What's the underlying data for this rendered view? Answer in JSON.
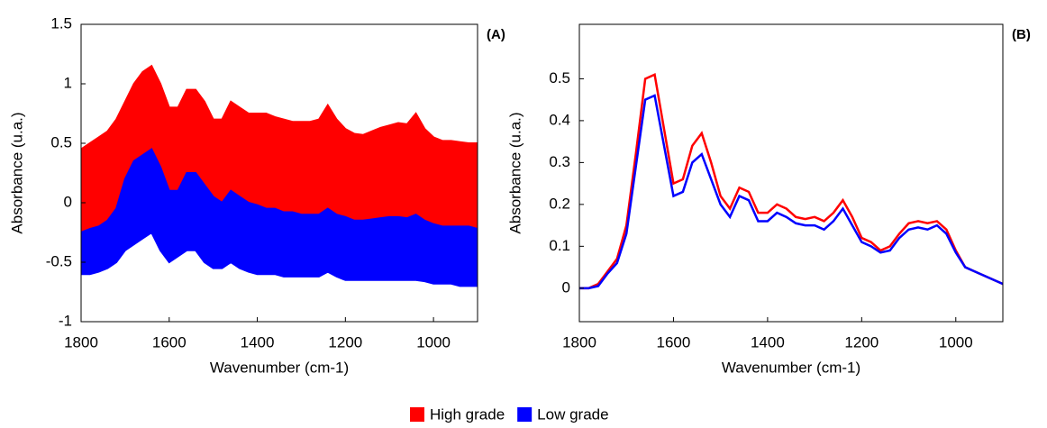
{
  "chart_data": [
    {
      "type": "band",
      "annotation": "(A)",
      "xlabel": "Wavenumber (cm-1)",
      "ylabel": "Absorbance (u.a.)",
      "x": [
        1800,
        1780,
        1760,
        1740,
        1720,
        1700,
        1680,
        1660,
        1640,
        1620,
        1600,
        1580,
        1560,
        1540,
        1520,
        1500,
        1480,
        1460,
        1440,
        1420,
        1400,
        1380,
        1360,
        1340,
        1320,
        1300,
        1280,
        1260,
        1240,
        1220,
        1200,
        1180,
        1160,
        1140,
        1120,
        1100,
        1080,
        1060,
        1040,
        1020,
        1000,
        980,
        960,
        940,
        920,
        900
      ],
      "xlim": [
        1800,
        900
      ],
      "xticks": [
        1800,
        1600,
        1400,
        1200,
        1000
      ],
      "ylim": [
        -1,
        1.5
      ],
      "yticks": [
        -1,
        -0.5,
        0,
        0.5,
        1,
        1.5
      ],
      "series": [
        {
          "color": "#ff0000",
          "values": [
            0.45,
            0.5,
            0.55,
            0.6,
            0.7,
            0.85,
            1.0,
            1.1,
            1.15,
            1.0,
            0.8,
            0.8,
            0.95,
            0.95,
            0.85,
            0.7,
            0.7,
            0.85,
            0.8,
            0.75,
            0.75,
            0.75,
            0.72,
            0.7,
            0.68,
            0.68,
            0.68,
            0.7,
            0.82,
            0.7,
            0.62,
            0.58,
            0.57,
            0.6,
            0.63,
            0.65,
            0.67,
            0.66,
            0.75,
            0.62,
            0.55,
            0.52,
            0.52,
            0.51,
            0.5,
            0.5
          ],
          "lower": [
            -0.25,
            -0.22,
            -0.2,
            -0.15,
            -0.05,
            0.2,
            0.35,
            0.4,
            0.45,
            0.3,
            0.1,
            0.1,
            0.25,
            0.25,
            0.15,
            0.05,
            0.0,
            0.1,
            0.05,
            0.0,
            -0.02,
            -0.05,
            -0.05,
            -0.08,
            -0.08,
            -0.1,
            -0.1,
            -0.1,
            -0.05,
            -0.1,
            -0.12,
            -0.15,
            -0.15,
            -0.14,
            -0.13,
            -0.12,
            -0.12,
            -0.13,
            -0.1,
            -0.15,
            -0.18,
            -0.2,
            -0.2,
            -0.2,
            -0.2,
            -0.22
          ]
        },
        {
          "color": "#0000ff",
          "values": [
            -0.25,
            -0.22,
            -0.2,
            -0.15,
            -0.05,
            0.2,
            0.35,
            0.4,
            0.45,
            0.3,
            0.1,
            0.1,
            0.25,
            0.25,
            0.15,
            0.05,
            0.0,
            0.1,
            0.05,
            0.0,
            -0.02,
            -0.05,
            -0.05,
            -0.08,
            -0.08,
            -0.1,
            -0.1,
            -0.1,
            -0.05,
            -0.1,
            -0.12,
            -0.15,
            -0.15,
            -0.14,
            -0.13,
            -0.12,
            -0.12,
            -0.13,
            -0.1,
            -0.15,
            -0.18,
            -0.2,
            -0.2,
            -0.2,
            -0.2,
            -0.22
          ],
          "lower": [
            -0.6,
            -0.6,
            -0.58,
            -0.55,
            -0.5,
            -0.4,
            -0.35,
            -0.3,
            -0.25,
            -0.4,
            -0.5,
            -0.45,
            -0.4,
            -0.4,
            -0.5,
            -0.55,
            -0.55,
            -0.5,
            -0.55,
            -0.58,
            -0.6,
            -0.6,
            -0.6,
            -0.62,
            -0.62,
            -0.62,
            -0.62,
            -0.62,
            -0.58,
            -0.62,
            -0.65,
            -0.65,
            -0.65,
            -0.65,
            -0.65,
            -0.65,
            -0.65,
            -0.65,
            -0.65,
            -0.66,
            -0.68,
            -0.68,
            -0.68,
            -0.7,
            -0.7,
            -0.7
          ]
        }
      ]
    },
    {
      "type": "line",
      "annotation": "(B)",
      "xlabel": "Wavenumber (cm-1)",
      "ylabel": "Absorbance (u.a.)",
      "x": [
        1800,
        1780,
        1760,
        1740,
        1720,
        1700,
        1680,
        1660,
        1640,
        1620,
        1600,
        1580,
        1560,
        1540,
        1520,
        1500,
        1480,
        1460,
        1440,
        1420,
        1400,
        1380,
        1360,
        1340,
        1320,
        1300,
        1280,
        1260,
        1240,
        1220,
        1200,
        1180,
        1160,
        1140,
        1120,
        1100,
        1080,
        1060,
        1040,
        1020,
        1000,
        980,
        960,
        940,
        920,
        900
      ],
      "xlim": [
        1800,
        900
      ],
      "xticks": [
        1800,
        1600,
        1400,
        1200,
        1000
      ],
      "ylim": [
        -0.08,
        0.63
      ],
      "yticks": [
        0,
        0.1,
        0.2,
        0.3,
        0.4,
        0.5
      ],
      "series": [
        {
          "color": "#ff0000",
          "values": [
            0,
            0,
            0.01,
            0.04,
            0.07,
            0.15,
            0.32,
            0.5,
            0.51,
            0.38,
            0.25,
            0.26,
            0.34,
            0.37,
            0.3,
            0.22,
            0.19,
            0.24,
            0.23,
            0.18,
            0.18,
            0.2,
            0.19,
            0.17,
            0.165,
            0.17,
            0.16,
            0.18,
            0.21,
            0.17,
            0.12,
            0.11,
            0.09,
            0.1,
            0.13,
            0.155,
            0.16,
            0.155,
            0.16,
            0.14,
            0.09,
            0.05,
            0.04,
            0.03,
            0.02,
            0.01
          ]
        },
        {
          "color": "#0000ff",
          "values": [
            0,
            0,
            0.005,
            0.035,
            0.06,
            0.13,
            0.29,
            0.45,
            0.46,
            0.34,
            0.22,
            0.23,
            0.3,
            0.32,
            0.26,
            0.2,
            0.17,
            0.22,
            0.21,
            0.16,
            0.16,
            0.18,
            0.17,
            0.155,
            0.15,
            0.15,
            0.14,
            0.16,
            0.19,
            0.15,
            0.11,
            0.1,
            0.085,
            0.09,
            0.12,
            0.14,
            0.145,
            0.14,
            0.15,
            0.13,
            0.085,
            0.05,
            0.04,
            0.03,
            0.02,
            0.01
          ]
        }
      ]
    }
  ],
  "legend": [
    {
      "label": "High grade",
      "color": "#ff0000"
    },
    {
      "label": "Low grade",
      "color": "#0000ff"
    }
  ]
}
